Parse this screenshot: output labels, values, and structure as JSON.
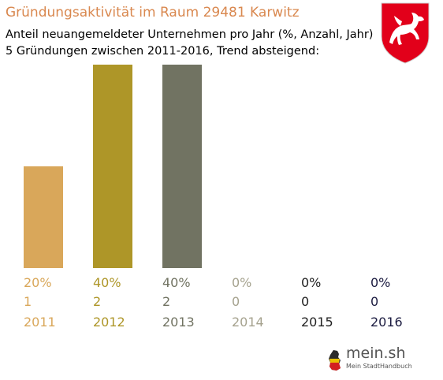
{
  "title": "Gründungsaktivität im Raum 29481 Karwitz",
  "subtitle_line1": "Anteil neuangemeldeter Unternehmen pro Jahr (%, Anzahl, Jahr)",
  "subtitle_line2": "5 Gründungen zwischen 2011-2016, Trend absteigend:",
  "logo": {
    "name": "mein.sh",
    "tagline": "Mein StadtHandbuch"
  },
  "colors": {
    "title": "#d9884f",
    "bars": [
      "#d9a75a",
      "#ae9628",
      "#717362",
      "#a5a28e",
      "#222222",
      "#1b1b40"
    ]
  },
  "chart_data": {
    "type": "bar",
    "categories": [
      "2011",
      "2012",
      "2013",
      "2014",
      "2015",
      "2016"
    ],
    "percent_labels": [
      "20%",
      "40%",
      "40%",
      "0%",
      "0%",
      "0%"
    ],
    "count_labels": [
      "1",
      "2",
      "2",
      "0",
      "0",
      "0"
    ],
    "values": [
      20,
      40,
      40,
      0,
      0,
      0
    ],
    "counts": [
      1,
      2,
      2,
      0,
      0,
      0
    ],
    "ylim": [
      0,
      40
    ]
  }
}
